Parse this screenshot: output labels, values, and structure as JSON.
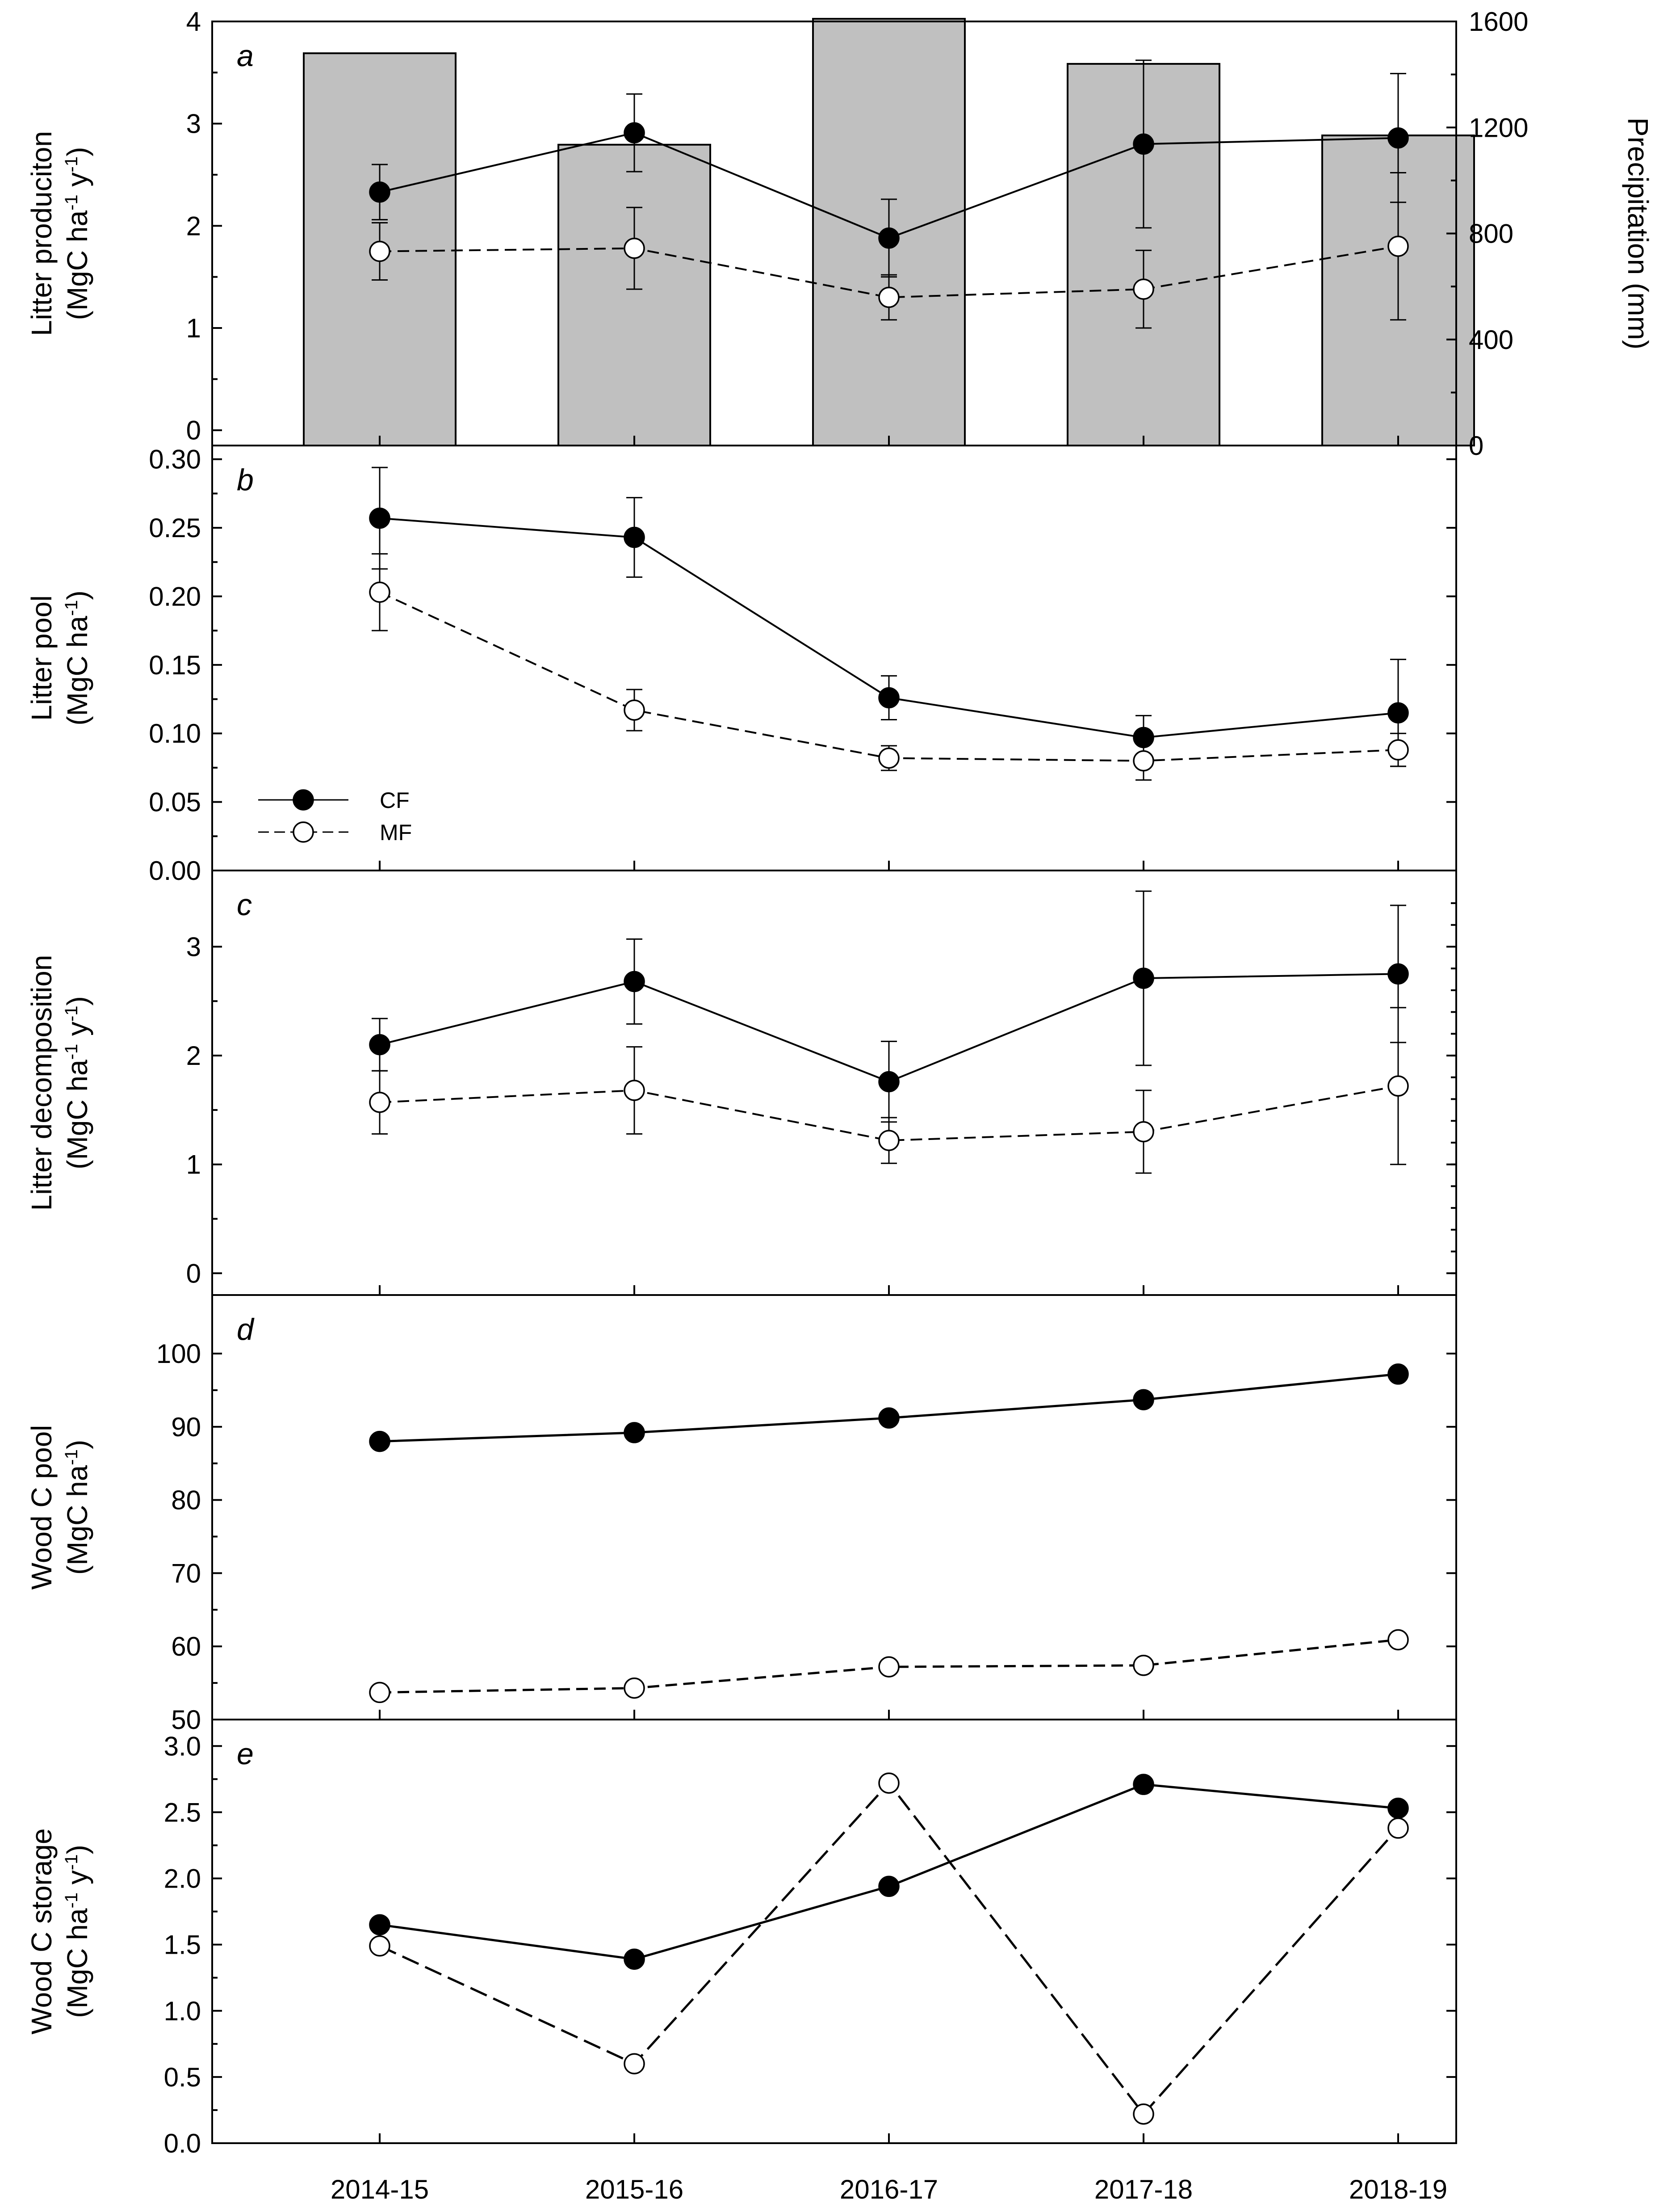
{
  "chart_data": {
    "type": "line",
    "categories": [
      "2014-15",
      "2015-16",
      "2016-17",
      "2017-18",
      "2018-19"
    ],
    "legend": {
      "placement": "panel-b-bottom-left",
      "entries": [
        {
          "label": "CF",
          "marker": "filled"
        },
        {
          "label": "MF",
          "marker": "open"
        }
      ]
    },
    "panels": [
      {
        "letter": "a",
        "ylabel_line1": "Litter produciton",
        "ylabel_line2": "(MgC ha",
        "ylabel_sup1": "-1",
        "ylabel_mid": " y",
        "ylabel_sup2": "-1",
        "ylabel_end": ")",
        "ylim": [
          -0.15,
          4.0
        ],
        "yticks": [
          0,
          1,
          2,
          3,
          4
        ],
        "ytick_labels": [
          "0",
          "1",
          "2",
          "3",
          "4"
        ],
        "right_axis": {
          "label": "Precipitation (mm)",
          "ylim": [
            0,
            1600
          ],
          "yticks": [
            0,
            400,
            800,
            1200,
            1600
          ],
          "ytick_labels": [
            "0",
            "400",
            "800",
            "1200",
            "1600"
          ]
        },
        "bars": {
          "name": "Precipitation",
          "color": "#c0c0c0",
          "values": [
            1480,
            1135,
            1610,
            1440,
            1170
          ]
        },
        "series": [
          {
            "name": "CF",
            "marker": "filled",
            "line": "solid",
            "values": [
              2.33,
              2.91,
              1.88,
              2.8,
              2.86
            ],
            "errors": [
              0.27,
              0.38,
              0.38,
              0.82,
              0.63
            ]
          },
          {
            "name": "MF",
            "marker": "open",
            "line": "dashed",
            "values": [
              1.75,
              1.78,
              1.3,
              1.38,
              1.8
            ],
            "errors": [
              0.28,
              0.4,
              0.22,
              0.38,
              0.72
            ]
          }
        ]
      },
      {
        "letter": "b",
        "ylabel_line1": "Litter pool",
        "ylabel_line2": "(MgC ha",
        "ylabel_sup1": "-1",
        "ylabel_mid": "",
        "ylabel_sup2": "",
        "ylabel_end": ")",
        "ylim": [
          0.0,
          0.31
        ],
        "yticks": [
          0.0,
          0.05,
          0.1,
          0.15,
          0.2,
          0.25,
          0.3
        ],
        "ytick_labels": [
          "0.00",
          "0.05",
          "0.10",
          "0.15",
          "0.20",
          "0.25",
          "0.30"
        ],
        "series": [
          {
            "name": "CF",
            "marker": "filled",
            "line": "solid",
            "values": [
              0.257,
              0.243,
              0.126,
              0.097,
              0.115
            ],
            "errors": [
              0.037,
              0.029,
              0.016,
              0.016,
              0.039
            ]
          },
          {
            "name": "MF",
            "marker": "open",
            "line": "dashed",
            "values": [
              0.203,
              0.117,
              0.082,
              0.08,
              0.088
            ],
            "errors": [
              0.028,
              0.015,
              0.009,
              0.014,
              0.012
            ]
          }
        ]
      },
      {
        "letter": "c",
        "ylabel_line1": "Litter decomposition",
        "ylabel_line2": "(MgC ha",
        "ylabel_sup1": "-1",
        "ylabel_mid": " y",
        "ylabel_sup2": "-1",
        "ylabel_end": ")",
        "ylim": [
          -0.2,
          3.7
        ],
        "yticks": [
          0,
          1,
          2,
          3
        ],
        "ytick_labels": [
          "0",
          "1",
          "2",
          "3"
        ],
        "series": [
          {
            "name": "CF",
            "marker": "filled",
            "line": "solid",
            "values": [
              2.1,
              2.68,
              1.76,
              2.71,
              2.75
            ],
            "errors": [
              0.24,
              0.39,
              0.37,
              0.8,
              0.63
            ]
          },
          {
            "name": "MF",
            "marker": "open",
            "line": "dashed",
            "values": [
              1.57,
              1.68,
              1.22,
              1.3,
              1.72
            ],
            "errors": [
              0.29,
              0.4,
              0.21,
              0.38,
              0.72
            ]
          }
        ]
      },
      {
        "letter": "d",
        "ylabel_line1": "Wood C pool",
        "ylabel_line2": "(MgC ha",
        "ylabel_sup1": "-1",
        "ylabel_mid": "",
        "ylabel_sup2": "",
        "ylabel_end": ")",
        "ylim": [
          50,
          108
        ],
        "yticks": [
          50,
          60,
          70,
          80,
          90,
          100
        ],
        "ytick_labels": [
          "50",
          "60",
          "70",
          "80",
          "90",
          "100"
        ],
        "series": [
          {
            "name": "CF",
            "marker": "filled",
            "line": "solid",
            "values": [
              88.0,
              89.2,
              91.2,
              93.7,
              97.2
            ]
          },
          {
            "name": "MF",
            "marker": "open",
            "line": "dashed",
            "values": [
              53.7,
              54.3,
              57.2,
              57.4,
              60.9
            ]
          }
        ]
      },
      {
        "letter": "e",
        "ylabel_line1": "Wood C storage",
        "ylabel_line2": "(MgC ha",
        "ylabel_sup1": "-1",
        "ylabel_mid": " y",
        "ylabel_sup2": "-1",
        "ylabel_end": ")",
        "ylim": [
          0.0,
          3.2
        ],
        "yticks": [
          0.0,
          0.5,
          1.0,
          1.5,
          2.0,
          2.5,
          3.0
        ],
        "ytick_labels": [
          "0.0",
          "0.5",
          "1.0",
          "1.5",
          "2.0",
          "2.5",
          "3.0"
        ],
        "series": [
          {
            "name": "CF",
            "marker": "filled",
            "line": "solid",
            "values": [
              1.65,
              1.39,
              1.94,
              2.71,
              2.53
            ]
          },
          {
            "name": "MF",
            "marker": "open",
            "line": "dashed",
            "values": [
              1.49,
              0.6,
              2.72,
              0.22,
              2.38
            ]
          }
        ]
      }
    ]
  }
}
